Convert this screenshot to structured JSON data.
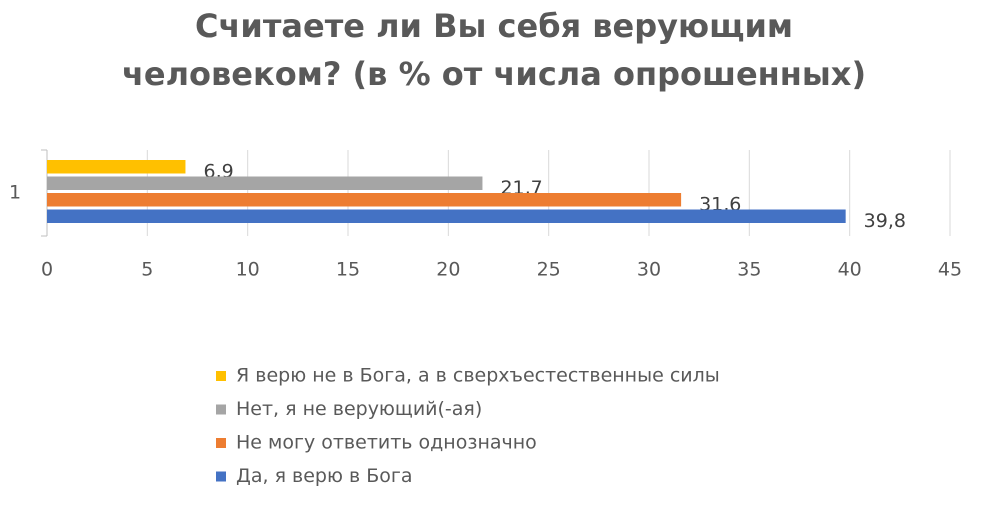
{
  "chart_data": {
    "type": "hbar",
    "title": [
      "Считаете ли Вы себя верующим",
      "человеком? (в % от числа опрошенных)"
    ],
    "categories": [
      "1"
    ],
    "series": [
      {
        "name": "Я верю не в Бога, а в сверхъестественные силы",
        "color": "#FFC000",
        "values": [
          6.9
        ],
        "value_labels": [
          "6,9"
        ]
      },
      {
        "name": "Нет, я не верующий(-ая)",
        "color": "#A5A5A5",
        "values": [
          21.7
        ],
        "value_labels": [
          "21,7"
        ]
      },
      {
        "name": "Не могу ответить однозначно",
        "color": "#ED7D31",
        "values": [
          31.6
        ],
        "value_labels": [
          "31,6"
        ]
      },
      {
        "name": "Да, я верю в Бога",
        "color": "#4472C4",
        "values": [
          39.8
        ],
        "value_labels": [
          "39,8"
        ]
      }
    ],
    "xlim": [
      0,
      45
    ],
    "xticks": [
      0,
      5,
      10,
      15,
      20,
      25,
      30,
      35,
      40,
      45
    ],
    "grid": true
  }
}
